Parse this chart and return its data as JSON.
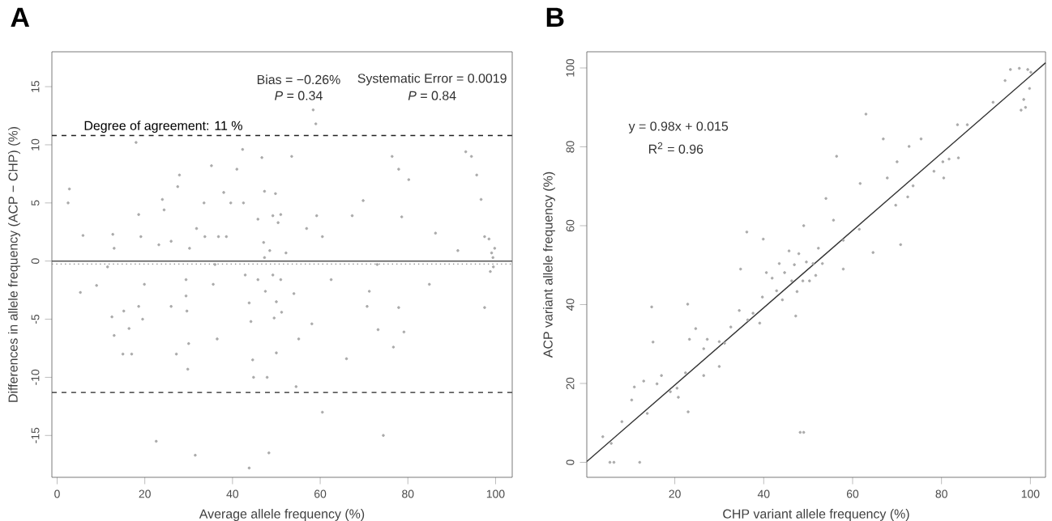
{
  "chart_data": [
    {
      "type": "scatter",
      "title": "A",
      "xlabel": "Average allele frequency (%)",
      "ylabel": "Differences in allele frequency (ACP − CHP) (%)",
      "xlim": [
        -1.2,
        103.8
      ],
      "ylim": [
        -18.6,
        18
      ],
      "xticks": [
        0,
        20,
        40,
        60,
        80,
        100
      ],
      "yticks": [
        -15,
        -10,
        -5,
        0,
        5,
        10,
        15
      ],
      "marker": "circle",
      "series": [
        {
          "color": "#aaaaaa",
          "x": [
            2.8,
            2.5,
            5.9,
            5.3,
            12.7,
            13,
            9,
            12.5,
            13,
            15.2,
            15,
            17,
            16.4,
            18,
            18.6,
            19.1,
            19.9,
            18.6,
            19.5,
            22.6,
            24,
            24.4,
            23.2,
            26,
            27.5,
            27.9,
            26,
            27.2,
            29.4,
            29.4,
            29.6,
            29.8,
            30,
            30.2,
            31.5,
            31.8,
            33.5,
            33.7,
            35.2,
            35.6,
            36.8,
            36.5,
            38,
            38.6,
            39.6,
            41,
            42.3,
            42.5,
            42.9,
            43.8,
            44.2,
            43.8,
            44.6,
            44.8,
            45.8,
            46.7,
            47.3,
            47.1,
            47.3,
            47.5,
            47.9,
            48.3,
            49.2,
            49.8,
            50.4,
            51,
            51,
            51.2,
            50,
            49.2,
            49.5,
            50,
            53.5,
            54,
            55.1,
            54.5,
            56.9,
            58.1,
            58.4,
            59,
            59.2,
            60.5,
            60.5,
            62.5,
            66,
            67.3,
            69.8,
            71.2,
            70.7,
            73.2,
            74.4,
            76.4,
            77.9,
            78.6,
            77.9,
            79.1,
            80.2,
            76.7,
            84.9,
            86.3,
            91.4,
            93.2,
            94.5,
            95.7,
            96.7,
            97.5,
            97.5,
            98.5,
            99.1,
            99.4,
            99.5,
            99.8,
            98.8,
            48.5,
            45.8,
            52.2,
            11.5,
            36,
            73
          ],
          "values": [
            6.2,
            5,
            2.2,
            -2.7,
            2.3,
            1.1,
            -2.1,
            -4.8,
            -6.4,
            -4.3,
            -8,
            -8,
            -5.8,
            10.2,
            4,
            2.1,
            -2,
            -3.9,
            -5,
            -15.5,
            5.3,
            4.4,
            1.4,
            1.7,
            6.4,
            7.4,
            -3.9,
            -8,
            -1.6,
            -3,
            -4.3,
            -9.3,
            -7.1,
            1.1,
            -16.7,
            2.8,
            5,
            2.1,
            8.2,
            -2,
            2.1,
            -6.7,
            5.9,
            2.1,
            5,
            7.9,
            9.6,
            5,
            -1.2,
            -3.6,
            -5.2,
            -17.8,
            -8.5,
            -10,
            3.6,
            8.9,
            6,
            1.6,
            0.3,
            -2.6,
            -10,
            -16.5,
            3.9,
            5.8,
            3.3,
            4,
            -1.6,
            -4.4,
            -3.5,
            -1.2,
            -4.9,
            -7.9,
            9,
            -2.8,
            -6.7,
            -10.8,
            2.8,
            -5.4,
            13,
            11.8,
            3.9,
            2.1,
            -13,
            -1.6,
            -8.4,
            3.9,
            5.2,
            -2.6,
            -3.9,
            -5.9,
            -15,
            9,
            7.9,
            3.8,
            -4,
            -6.1,
            7,
            -7.4,
            -2,
            2.4,
            0.9,
            9.4,
            9,
            7.4,
            5.3,
            2.1,
            -4,
            1.9,
            0.7,
            0.3,
            -0.5,
            1.1,
            -0.9,
            0.9,
            -1.6,
            0.7,
            -0.5,
            -0.3,
            -0.3
          ]
        }
      ],
      "ref_lines": [
        {
          "axis": "y",
          "value": 0,
          "color": "#555555",
          "line_style": "solid"
        },
        {
          "axis": "y",
          "value": -0.26,
          "color": "#888888",
          "line_style": "dotted"
        },
        {
          "axis": "y",
          "value": 10.8,
          "color": "#222222",
          "line_style": "dashed",
          "label": "Degree of agreement: 11 %"
        },
        {
          "axis": "y",
          "value": -11.3,
          "color": "#222222",
          "line_style": "dashed"
        }
      ],
      "annotations": [
        "Bias = −0.26%",
        "*P* = 0.34",
        "Systematic Error = 0.0019",
        "*P* = 0.84"
      ]
    },
    {
      "type": "scatter",
      "title": "B",
      "xlabel": "CHP variant allele frequency (%)",
      "ylabel": "ACP variant allele frequency (%)",
      "xlim": [
        0.2,
        103.4
      ],
      "ylim": [
        -3.8,
        104.1
      ],
      "xticks": [
        20,
        40,
        60,
        80,
        100
      ],
      "yticks": [
        0,
        20,
        40,
        60,
        80,
        100
      ],
      "marker": "circle",
      "series": [
        {
          "color": "#aaaaaa",
          "x": [
            3.8,
            5.7,
            5.4,
            6.3,
            12.1,
            8.1,
            10.3,
            10.9,
            13,
            13.8,
            14.8,
            15.1,
            16,
            17,
            19,
            20.5,
            20.8,
            22.4,
            23,
            22.9,
            23.3,
            24.7,
            26.5,
            26.5,
            27.3,
            30,
            30,
            31.2,
            32.6,
            34.8,
            34.5,
            36.2,
            36.4,
            37.6,
            39.1,
            39.7,
            39.9,
            40.6,
            41.9,
            42.9,
            43.5,
            44.2,
            44.7,
            45.7,
            46.3,
            46.9,
            47.2,
            47.5,
            47.9,
            48.2,
            48.8,
            49,
            49,
            49.6,
            50.3,
            51.1,
            51.7,
            52.3,
            53.2,
            54,
            55.7,
            56.4,
            57.9,
            57.9,
            61.5,
            61.7,
            63,
            64.6,
            66.9,
            67.8,
            69.7,
            70,
            70.8,
            72.4,
            72.7,
            73.6,
            75.4,
            78.3,
            80.3,
            80.5,
            81.7,
            83.6,
            83.8,
            85.8,
            91.6,
            94.3,
            95.5,
            97.5,
            97.9,
            98.5,
            98.9,
            99.4,
            99.8,
            100.1
          ],
          "values": [
            6.5,
            4.8,
            0,
            0,
            0,
            10.3,
            15.8,
            19.1,
            20.6,
            12.4,
            39.4,
            30.5,
            19.9,
            22,
            17.9,
            18.8,
            16.5,
            22.7,
            12.8,
            40.1,
            31.2,
            33.9,
            28.8,
            22,
            31.2,
            24.3,
            30.6,
            30.2,
            34.3,
            49,
            38.5,
            58.4,
            36.1,
            37.8,
            35.3,
            41.9,
            56.6,
            48.1,
            46.7,
            43.5,
            50.4,
            41.2,
            48.1,
            53.6,
            46,
            50.1,
            37.1,
            43.3,
            52.9,
            7.6,
            46,
            7.6,
            60,
            50.8,
            46,
            50.4,
            47.4,
            54.3,
            50.4,
            66.9,
            61.4,
            77.6,
            56.3,
            49,
            59.1,
            70.7,
            88.3,
            53.2,
            82,
            72.1,
            65.2,
            76.2,
            55.2,
            67.3,
            80.1,
            70.1,
            82,
            73.8,
            76.2,
            72.1,
            76.9,
            85.6,
            77.2,
            85.6,
            91.3,
            96.8,
            99.6,
            99.9,
            89.3,
            92,
            90,
            99.6,
            94.8,
            98.9
          ]
        },
        {
          "type": "line",
          "color": "#333333",
          "marker": "none",
          "x": [
            0.2,
            103.4
          ],
          "values": [
            0.2,
            101.3
          ]
        }
      ],
      "annotations": [
        "y = 0.98x + 0.015",
        "R$^{2}$ = 0.96"
      ]
    }
  ]
}
